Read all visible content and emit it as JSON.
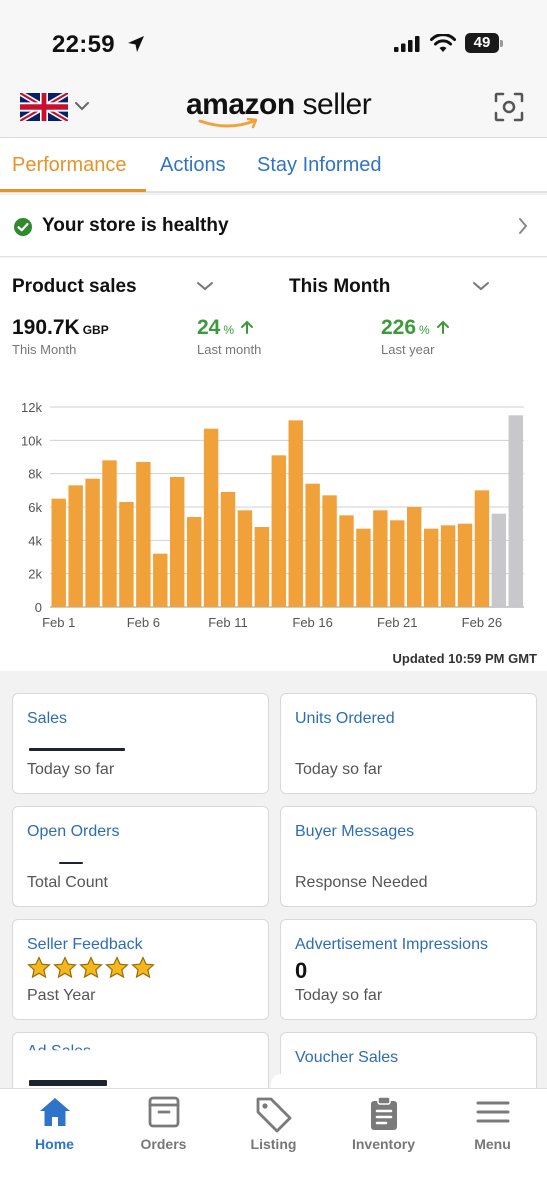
{
  "status_bar": {
    "time": "22:59",
    "battery": "49"
  },
  "header": {
    "logo_word1": "amazon",
    "logo_word2": " seller"
  },
  "tabs": [
    {
      "label": "Performance",
      "active": true
    },
    {
      "label": "Actions",
      "active": false
    },
    {
      "label": "Stay Informed",
      "active": false
    }
  ],
  "health": {
    "text": "Your store is healthy"
  },
  "performance": {
    "metric_selector": "Product sales",
    "period_selector": "This Month",
    "primary": {
      "value": "190.7K",
      "unit": "GBP",
      "label": "This Month"
    },
    "vs_last_month": {
      "value": "24",
      "unit": "%",
      "label": "Last month"
    },
    "vs_last_year": {
      "value": "226",
      "unit": "%",
      "label": "Last year"
    },
    "updated": "Updated 10:59 PM GMT"
  },
  "chart_data": {
    "type": "bar",
    "title": "",
    "xlabel": "",
    "ylabel": "",
    "ylim": [
      0,
      12000
    ],
    "y_ticks": [
      "0",
      "2k",
      "4k",
      "6k",
      "8k",
      "10k",
      "12k"
    ],
    "x_tick_labels": [
      "Feb 1",
      "Feb 6",
      "Feb 11",
      "Feb 16",
      "Feb 21",
      "Feb 26"
    ],
    "categories": [
      "Feb 1",
      "Feb 2",
      "Feb 3",
      "Feb 4",
      "Feb 5",
      "Feb 6",
      "Feb 7",
      "Feb 8",
      "Feb 9",
      "Feb 10",
      "Feb 11",
      "Feb 12",
      "Feb 13",
      "Feb 14",
      "Feb 15",
      "Feb 16",
      "Feb 17",
      "Feb 18",
      "Feb 19",
      "Feb 20",
      "Feb 21",
      "Feb 22",
      "Feb 23",
      "Feb 24",
      "Feb 25",
      "Feb 26",
      "Feb 27",
      "Feb 28"
    ],
    "values": [
      6500,
      7300,
      7700,
      8800,
      6300,
      8700,
      3200,
      7800,
      5400,
      10700,
      6900,
      5800,
      4800,
      9100,
      11200,
      7400,
      6700,
      5500,
      4700,
      5800,
      5200,
      6000,
      4700,
      4900,
      5000,
      7000,
      5600,
      11500
    ],
    "bar_colors": {
      "actual": "#f0a13a",
      "projected": "#c8c8cc"
    },
    "projected_from_index": 26,
    "grid": true
  },
  "cards": [
    {
      "title": "Sales",
      "subtitle": "Today so far",
      "value": ""
    },
    {
      "title": "Units Ordered",
      "subtitle": "Today so far",
      "value": ""
    },
    {
      "title": "Open Orders",
      "subtitle": "Total Count",
      "value": ""
    },
    {
      "title": "Buyer Messages",
      "subtitle": "Response Needed",
      "value": ""
    },
    {
      "title": "Seller Feedback",
      "subtitle": "Past Year",
      "rating": 5
    },
    {
      "title": "Advertisement Impressions",
      "subtitle": "Today so far",
      "value": "0"
    },
    {
      "title": "Ad Sales",
      "subtitle": "",
      "value": ""
    },
    {
      "title": "Voucher Sales",
      "subtitle": "",
      "value": ""
    }
  ],
  "bottom_nav": [
    {
      "label": "Home",
      "icon": "home-icon",
      "active": true
    },
    {
      "label": "Orders",
      "icon": "orders-icon",
      "active": false
    },
    {
      "label": "Listing",
      "icon": "tag-icon",
      "active": false
    },
    {
      "label": "Inventory",
      "icon": "clipboard-icon",
      "active": false
    },
    {
      "label": "Menu",
      "icon": "hamburger-icon",
      "active": false
    }
  ],
  "colors": {
    "accent_orange": "#e8922a",
    "link_blue": "#2f74c8",
    "positive_green": "#3c9a3a"
  }
}
